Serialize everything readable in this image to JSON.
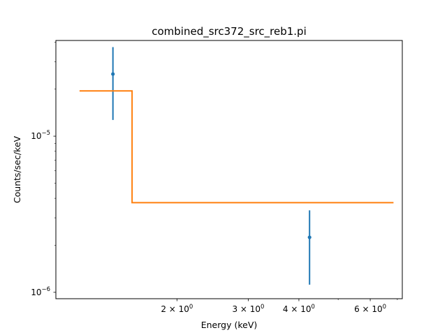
{
  "chart_data": {
    "type": "scatter",
    "title": "combined_src372_src_reb1.pi",
    "xlabel": "Energy (keV)",
    "ylabel": "Counts/sec/keV",
    "xscale": "log",
    "yscale": "log",
    "xlim": [
      1.005,
      7.2
    ],
    "ylim": [
      9.1e-07,
      4.1e-05
    ],
    "grid": false,
    "x_ticks": [
      {
        "value": 2,
        "label": "2 × 10",
        "exp": "0"
      },
      {
        "value": 3,
        "label": "3 × 10",
        "exp": "0"
      },
      {
        "value": 4,
        "label": "4 × 10",
        "exp": "0"
      },
      {
        "value": 6,
        "label": "6 × 10",
        "exp": "0"
      }
    ],
    "y_ticks": [
      {
        "value": 1e-05,
        "label": "10",
        "exp": "−5"
      },
      {
        "value": 1e-06,
        "label": "10",
        "exp": "−6"
      }
    ],
    "series": [
      {
        "kind": "errorbar",
        "color": "#1f77b4",
        "points": [
          {
            "x": 1.39,
            "y": 2.5e-05,
            "ylow": 1.27e-05,
            "yhigh": 3.72e-05
          },
          {
            "x": 4.25,
            "y": 2.25e-06,
            "ylow": 1.12e-06,
            "yhigh": 3.35e-06
          }
        ]
      },
      {
        "kind": "step",
        "color": "#ff7f0e",
        "points": [
          {
            "x": 1.15,
            "y": 1.95e-05
          },
          {
            "x": 1.55,
            "y": 1.95e-05
          },
          {
            "x": 1.55,
            "y": 3.75e-06
          },
          {
            "x": 6.85,
            "y": 3.75e-06
          }
        ]
      }
    ]
  }
}
